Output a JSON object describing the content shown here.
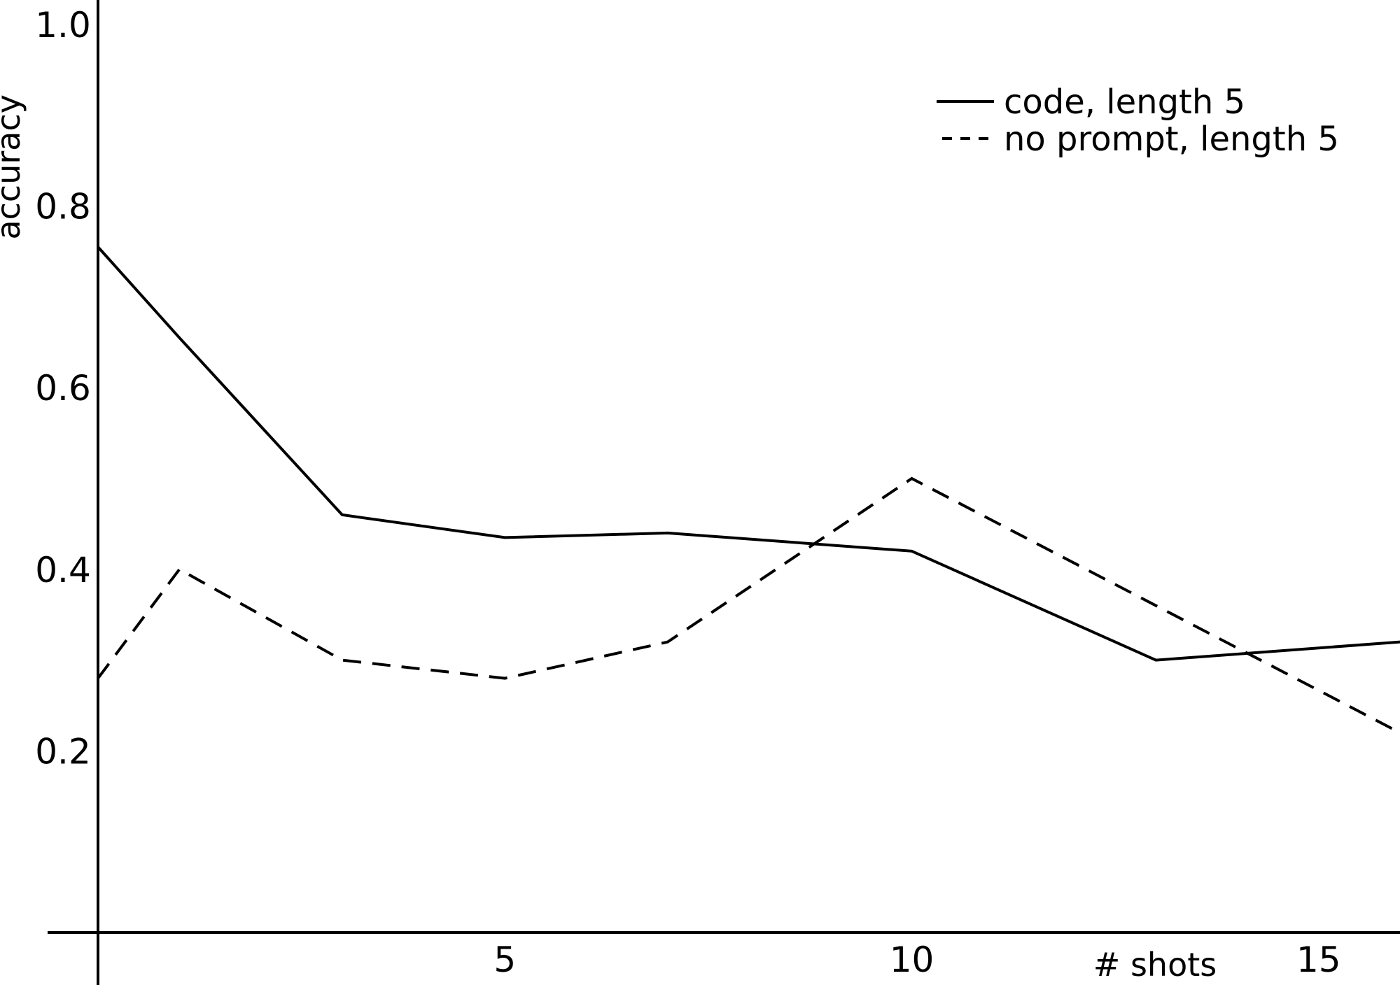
{
  "chart_data": {
    "type": "line",
    "title": "",
    "xlabel": "# shots",
    "ylabel": "accuracy",
    "xlim": [
      0,
      16
    ],
    "ylim": [
      0,
      1.0
    ],
    "x_ticks": [
      5,
      10,
      15
    ],
    "y_ticks": [
      0.2,
      0.4,
      0.6,
      0.8,
      1.0
    ],
    "x_tick_labels": [
      "5",
      "10",
      "15"
    ],
    "y_tick_labels": [
      "0.2",
      "0.4",
      "0.6",
      "0.8",
      "1.0"
    ],
    "grid": false,
    "legend_position": "top-right",
    "series": [
      {
        "name": "code, length 5",
        "style": "solid",
        "color": "#000000",
        "x": [
          0,
          1,
          3,
          5,
          7,
          10,
          13,
          16
        ],
        "y": [
          0.755,
          0.655,
          0.46,
          0.435,
          0.44,
          0.42,
          0.3,
          0.32
        ]
      },
      {
        "name": "no prompt, length 5",
        "style": "dashed",
        "color": "#000000",
        "x": [
          0,
          1,
          3,
          5,
          7,
          10,
          13,
          16
        ],
        "y": [
          0.28,
          0.4,
          0.3,
          0.28,
          0.32,
          0.5,
          0.36,
          0.22
        ]
      }
    ]
  }
}
